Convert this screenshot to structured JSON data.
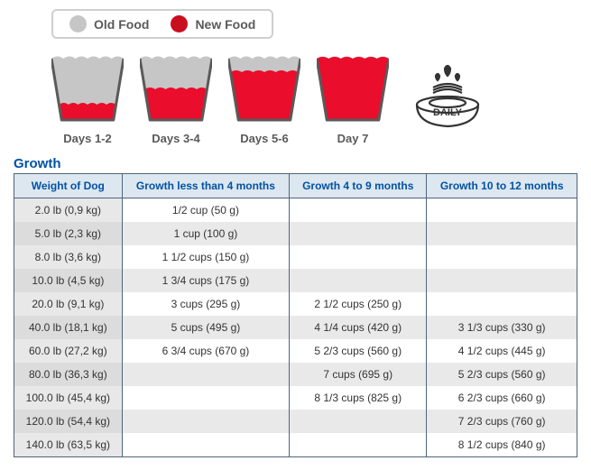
{
  "legend": {
    "old": {
      "label": "Old Food",
      "color": "#c6c6c6"
    },
    "new": {
      "label": "New Food",
      "color": "#c90e1f"
    }
  },
  "cups": {
    "old_color": "#c6c6c6",
    "new_color": "#ea0d2c",
    "outline": "#5a5a5a",
    "width": 80,
    "height": 78,
    "items": [
      {
        "label": "Days 1-2",
        "fill": 0.25
      },
      {
        "label": "Days 3-4",
        "fill": 0.5
      },
      {
        "label": "Days 5-6",
        "fill": 0.78
      },
      {
        "label": "Day 7",
        "fill": 1.0
      }
    ],
    "daily_label": "DAILY"
  },
  "table": {
    "heading": "Growth",
    "columns": [
      "Weight of Dog",
      "Growth less than 4 months",
      "Growth 4 to 9 months",
      "Growth 10 to 12 months"
    ],
    "rows": [
      [
        "2.0 lb (0,9 kg)",
        "1/2 cup (50 g)",
        "",
        ""
      ],
      [
        "5.0 lb (2,3 kg)",
        "1 cup (100 g)",
        "",
        ""
      ],
      [
        "8.0 lb (3,6 kg)",
        "1 1/2 cups (150 g)",
        "",
        ""
      ],
      [
        "10.0 lb (4,5 kg)",
        "1 3/4 cups (175 g)",
        "",
        ""
      ],
      [
        "20.0 lb (9,1 kg)",
        "3 cups (295 g)",
        "2 1/2 cups (250 g)",
        ""
      ],
      [
        "40.0 lb (18,1 kg)",
        "5 cups (495 g)",
        "4 1/4 cups (420 g)",
        "3 1/3 cups (330 g)"
      ],
      [
        "60.0 lb (27,2 kg)",
        "6 3/4 cups (670 g)",
        "5 2/3 cups (560 g)",
        "4 1/2 cups (445 g)"
      ],
      [
        "80.0 lb (36,3 kg)",
        "",
        "7 cups (695 g)",
        "5 2/3 cups (560 g)"
      ],
      [
        "100.0 lb (45,4 kg)",
        "",
        "8 1/3 cups (825 g)",
        "6 2/3 cups (660 g)"
      ],
      [
        "120.0 lb (54,4 kg)",
        "",
        "",
        "7 2/3 cups (760 g)"
      ],
      [
        "140.0 lb (63,5 kg)",
        "",
        "",
        "8 1/2 cups (840 g)"
      ]
    ]
  },
  "style": {
    "heading_color": "#0052a4",
    "th_bg": "#dde7f0",
    "border_color": "#50647a"
  }
}
